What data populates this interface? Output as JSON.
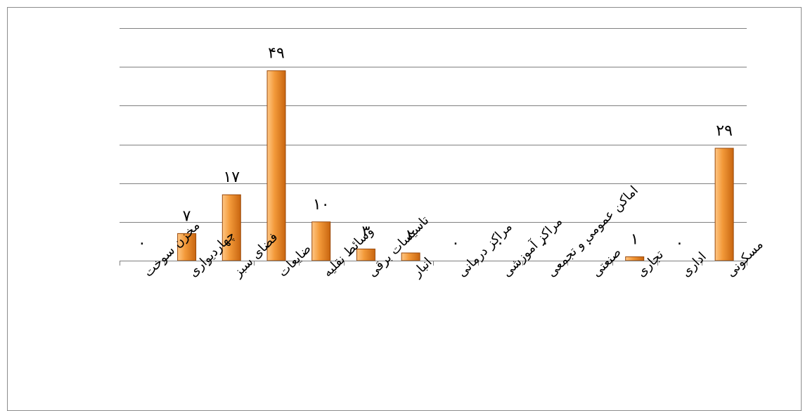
{
  "chart_data": {
    "type": "bar",
    "categories": [
      "مخزن سوخت",
      "چهاردیواری",
      "فضای سبز",
      "ضایعات",
      "وسائط نقلیه",
      "تاسیسات برقی",
      "انبار",
      "مراکز درمانی",
      "مراکز آموزشی",
      "اماکن عمومی و تجمعی",
      "صنعتی",
      "تجاری",
      "اداری",
      "مسکونی"
    ],
    "values": [
      0,
      7,
      17,
      49,
      10,
      3,
      2,
      0,
      0,
      0,
      0,
      1,
      0,
      29
    ],
    "value_labels": [
      "۰",
      "۷",
      "۱۷",
      "۴۹",
      "۱۰",
      "۳",
      "۲",
      "۰",
      "۰",
      "۰",
      "۰",
      "۱",
      "۰",
      "۲۹"
    ],
    "ylim": [
      0,
      60
    ],
    "ytick_step": 10,
    "grid": true,
    "legend": "none",
    "title": "",
    "xlabel": "",
    "ylabel": "",
    "colors": {
      "bar_light": "#ffc785",
      "bar_mid": "#f39a3a",
      "bar_dark": "#c8650f",
      "gridline": "#808080"
    }
  }
}
